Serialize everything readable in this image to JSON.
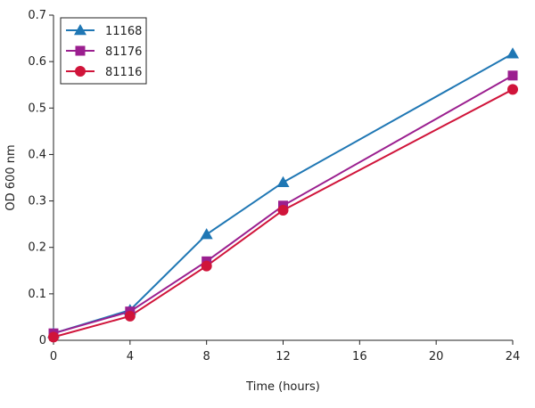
{
  "chart_data": {
    "type": "line",
    "title": "",
    "xlabel": "Time (hours)",
    "ylabel": "OD 600 nm",
    "x": [
      0,
      4,
      8,
      12,
      24
    ],
    "xlim": [
      0,
      24
    ],
    "ylim": [
      0,
      0.7
    ],
    "xticks": [
      "0",
      "4",
      "8",
      "12",
      "16",
      "20",
      "24"
    ],
    "yticks": [
      "0",
      "0.1",
      "0.2",
      "0.3",
      "0.4",
      "0.5",
      "0.6",
      "0.7"
    ],
    "grid": false,
    "legend_position": "top-left",
    "series": [
      {
        "name": "11168",
        "values": [
          0.015,
          0.065,
          0.228,
          0.34,
          0.617
        ],
        "color": "#1f77b4",
        "marker": "triangle"
      },
      {
        "name": "81176",
        "values": [
          0.015,
          0.062,
          0.17,
          0.29,
          0.57
        ],
        "color": "#9b1f8f",
        "marker": "square"
      },
      {
        "name": "81116",
        "values": [
          0.007,
          0.052,
          0.16,
          0.28,
          0.54
        ],
        "color": "#d0143a",
        "marker": "circle"
      }
    ]
  }
}
